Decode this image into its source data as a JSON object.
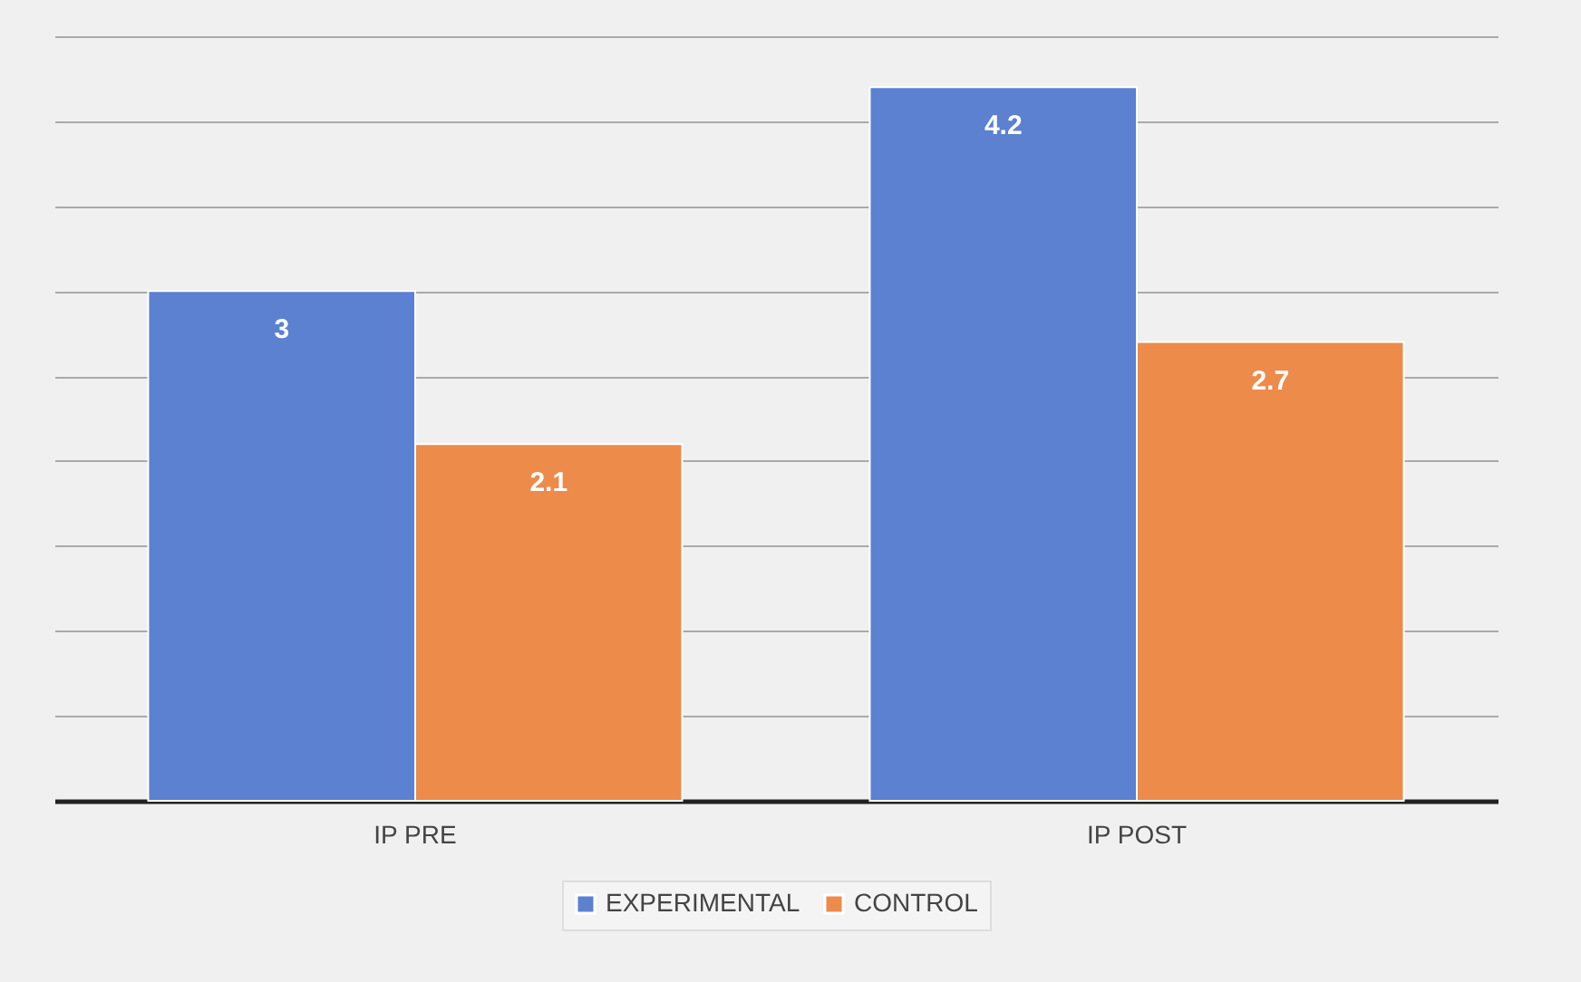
{
  "chart_data": {
    "type": "bar",
    "categories": [
      "IP PRE",
      "IP POST"
    ],
    "series": [
      {
        "name": "EXPERIMENTAL",
        "color": "#5b81d0",
        "values": [
          3,
          4.2
        ]
      },
      {
        "name": "CONTROL",
        "color": "#ed8b4a",
        "values": [
          2.1,
          2.7
        ]
      }
    ],
    "ylim": [
      0,
      4.5
    ],
    "yticks": [
      {
        "value": 0,
        "label": null
      },
      {
        "value": 0.5,
        "label": null
      },
      {
        "value": 1,
        "label": null
      },
      {
        "value": 1.5,
        "label": null
      },
      {
        "value": 2,
        "label": null
      },
      {
        "value": 2.5,
        "label": null
      },
      {
        "value": 3,
        "label": null
      },
      {
        "value": 3.5,
        "label": null
      },
      {
        "value": 4,
        "label": null
      },
      {
        "value": 4.5,
        "label": null
      }
    ],
    "tick_labels": "x",
    "grid": "y",
    "legend": "bottom",
    "data_labels": true
  }
}
